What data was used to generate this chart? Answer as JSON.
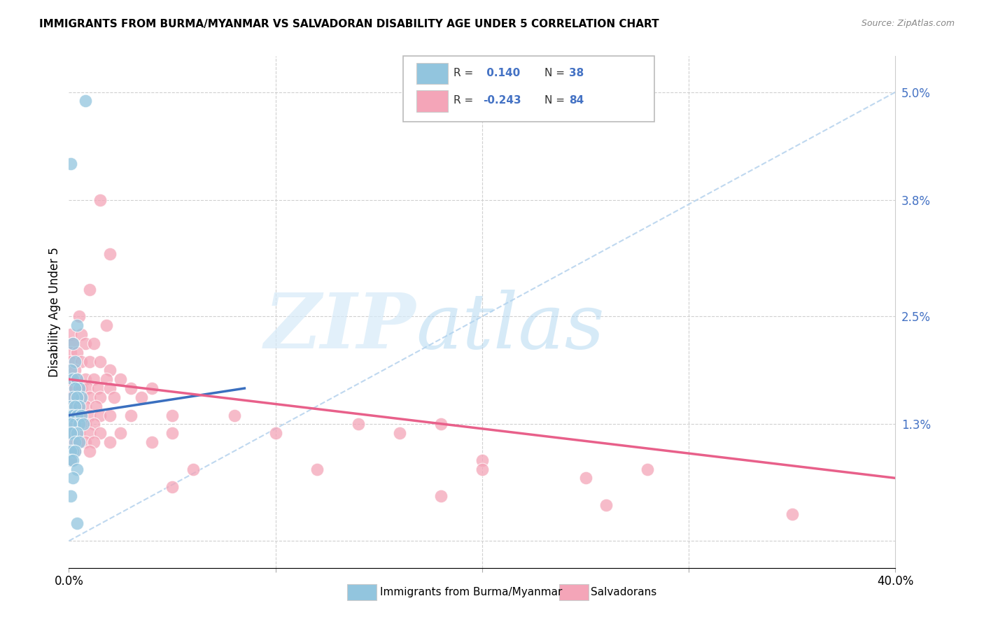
{
  "title": "IMMIGRANTS FROM BURMA/MYANMAR VS SALVADORAN DISABILITY AGE UNDER 5 CORRELATION CHART",
  "source": "Source: ZipAtlas.com",
  "ylabel": "Disability Age Under 5",
  "blue_color": "#92c5de",
  "pink_color": "#f4a5b8",
  "blue_line_color": "#3a6fbf",
  "pink_line_color": "#e8608a",
  "dashed_line_color": "#b8d4ee",
  "xmin": 0.0,
  "xmax": 0.4,
  "ymin": -0.003,
  "ymax": 0.054,
  "ytick_positions": [
    0.0,
    0.013,
    0.025,
    0.038,
    0.05
  ],
  "ytick_labels": [
    "",
    "1.3%",
    "2.5%",
    "3.8%",
    "5.0%"
  ],
  "xtick_positions": [
    0.0,
    0.1,
    0.2,
    0.3,
    0.4
  ],
  "xtick_labels": [
    "0.0%",
    "",
    "",
    "",
    "40.0%"
  ],
  "legend_line1_prefix": "R = ",
  "legend_line1_value": " 0.140",
  "legend_line1_n": "N = 38",
  "legend_line2_prefix": "R = ",
  "legend_line2_value": "-0.243",
  "legend_line2_n": "N = 84",
  "blue_scatter": [
    [
      0.008,
      0.049
    ],
    [
      0.001,
      0.042
    ],
    [
      0.004,
      0.024
    ],
    [
      0.002,
      0.022
    ],
    [
      0.003,
      0.02
    ],
    [
      0.001,
      0.019
    ],
    [
      0.002,
      0.018
    ],
    [
      0.004,
      0.018
    ],
    [
      0.005,
      0.017
    ],
    [
      0.003,
      0.017
    ],
    [
      0.006,
      0.016
    ],
    [
      0.002,
      0.016
    ],
    [
      0.004,
      0.016
    ],
    [
      0.001,
      0.015
    ],
    [
      0.005,
      0.015
    ],
    [
      0.003,
      0.015
    ],
    [
      0.001,
      0.014
    ],
    [
      0.002,
      0.014
    ],
    [
      0.004,
      0.014
    ],
    [
      0.006,
      0.014
    ],
    [
      0.003,
      0.013
    ],
    [
      0.005,
      0.013
    ],
    [
      0.007,
      0.013
    ],
    [
      0.001,
      0.013
    ],
    [
      0.002,
      0.012
    ],
    [
      0.004,
      0.012
    ],
    [
      0.001,
      0.012
    ],
    [
      0.003,
      0.011
    ],
    [
      0.005,
      0.011
    ],
    [
      0.002,
      0.01
    ],
    [
      0.001,
      0.01
    ],
    [
      0.003,
      0.01
    ],
    [
      0.001,
      0.009
    ],
    [
      0.002,
      0.009
    ],
    [
      0.004,
      0.008
    ],
    [
      0.002,
      0.007
    ],
    [
      0.001,
      0.005
    ],
    [
      0.004,
      0.002
    ]
  ],
  "pink_scatter": [
    [
      0.015,
      0.038
    ],
    [
      0.02,
      0.032
    ],
    [
      0.01,
      0.028
    ],
    [
      0.005,
      0.025
    ],
    [
      0.018,
      0.024
    ],
    [
      0.001,
      0.023
    ],
    [
      0.006,
      0.023
    ],
    [
      0.002,
      0.022
    ],
    [
      0.008,
      0.022
    ],
    [
      0.012,
      0.022
    ],
    [
      0.001,
      0.021
    ],
    [
      0.004,
      0.021
    ],
    [
      0.001,
      0.02
    ],
    [
      0.006,
      0.02
    ],
    [
      0.01,
      0.02
    ],
    [
      0.015,
      0.02
    ],
    [
      0.02,
      0.019
    ],
    [
      0.003,
      0.019
    ],
    [
      0.001,
      0.018
    ],
    [
      0.004,
      0.018
    ],
    [
      0.008,
      0.018
    ],
    [
      0.012,
      0.018
    ],
    [
      0.018,
      0.018
    ],
    [
      0.025,
      0.018
    ],
    [
      0.001,
      0.017
    ],
    [
      0.003,
      0.017
    ],
    [
      0.006,
      0.017
    ],
    [
      0.009,
      0.017
    ],
    [
      0.014,
      0.017
    ],
    [
      0.02,
      0.017
    ],
    [
      0.03,
      0.017
    ],
    [
      0.04,
      0.017
    ],
    [
      0.001,
      0.016
    ],
    [
      0.005,
      0.016
    ],
    [
      0.01,
      0.016
    ],
    [
      0.015,
      0.016
    ],
    [
      0.022,
      0.016
    ],
    [
      0.035,
      0.016
    ],
    [
      0.001,
      0.015
    ],
    [
      0.004,
      0.015
    ],
    [
      0.008,
      0.015
    ],
    [
      0.013,
      0.015
    ],
    [
      0.001,
      0.014
    ],
    [
      0.005,
      0.014
    ],
    [
      0.01,
      0.014
    ],
    [
      0.015,
      0.014
    ],
    [
      0.02,
      0.014
    ],
    [
      0.03,
      0.014
    ],
    [
      0.05,
      0.014
    ],
    [
      0.08,
      0.014
    ],
    [
      0.14,
      0.013
    ],
    [
      0.001,
      0.013
    ],
    [
      0.004,
      0.013
    ],
    [
      0.008,
      0.013
    ],
    [
      0.012,
      0.013
    ],
    [
      0.18,
      0.013
    ],
    [
      0.001,
      0.012
    ],
    [
      0.005,
      0.012
    ],
    [
      0.01,
      0.012
    ],
    [
      0.015,
      0.012
    ],
    [
      0.025,
      0.012
    ],
    [
      0.05,
      0.012
    ],
    [
      0.1,
      0.012
    ],
    [
      0.16,
      0.012
    ],
    [
      0.001,
      0.011
    ],
    [
      0.004,
      0.011
    ],
    [
      0.008,
      0.011
    ],
    [
      0.012,
      0.011
    ],
    [
      0.02,
      0.011
    ],
    [
      0.04,
      0.011
    ],
    [
      0.001,
      0.01
    ],
    [
      0.003,
      0.01
    ],
    [
      0.01,
      0.01
    ],
    [
      0.001,
      0.009
    ],
    [
      0.2,
      0.009
    ],
    [
      0.06,
      0.008
    ],
    [
      0.12,
      0.008
    ],
    [
      0.2,
      0.008
    ],
    [
      0.28,
      0.008
    ],
    [
      0.25,
      0.007
    ],
    [
      0.05,
      0.006
    ],
    [
      0.18,
      0.005
    ],
    [
      0.26,
      0.004
    ],
    [
      0.35,
      0.003
    ]
  ],
  "blue_line_x": [
    0.0,
    0.085
  ],
  "blue_line_y": [
    0.014,
    0.017
  ],
  "pink_line_x": [
    0.0,
    0.4
  ],
  "pink_line_y": [
    0.018,
    0.007
  ]
}
